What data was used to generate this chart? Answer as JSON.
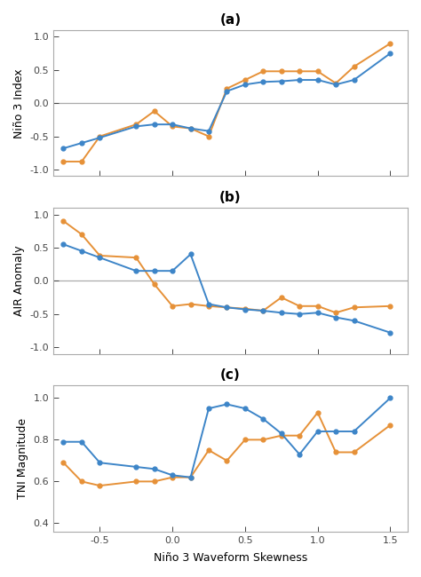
{
  "x": [
    -0.75,
    -0.625,
    -0.5,
    -0.25,
    -0.125,
    0.0,
    0.125,
    0.25,
    0.375,
    0.5,
    0.625,
    0.75,
    0.875,
    1.0,
    1.125,
    1.25,
    1.5
  ],
  "panel_a": {
    "blue": [
      -0.68,
      -0.6,
      -0.52,
      -0.35,
      -0.32,
      -0.32,
      -0.38,
      -0.42,
      0.18,
      0.28,
      0.32,
      0.33,
      0.35,
      0.35,
      0.28,
      0.35,
      0.75
    ],
    "orange": [
      -0.88,
      -0.88,
      -0.5,
      -0.32,
      -0.12,
      -0.35,
      -0.38,
      -0.5,
      0.22,
      0.35,
      0.48,
      0.48,
      0.48,
      0.48,
      0.3,
      0.55,
      0.9
    ],
    "ylabel": "Niño 3 Index",
    "title": "(a)",
    "ylim": [
      -1.1,
      1.1
    ],
    "yticks": [
      -1.0,
      -0.5,
      0.0,
      0.5,
      1.0
    ],
    "hline": 0.0
  },
  "panel_b": {
    "blue": [
      0.55,
      0.45,
      0.35,
      0.15,
      0.15,
      0.15,
      0.4,
      -0.35,
      -0.4,
      -0.43,
      -0.45,
      -0.48,
      -0.5,
      -0.48,
      -0.55,
      -0.6,
      -0.78
    ],
    "orange": [
      0.9,
      0.7,
      0.38,
      0.35,
      -0.05,
      -0.38,
      -0.35,
      -0.38,
      -0.4,
      -0.42,
      -0.45,
      -0.25,
      -0.38,
      -0.38,
      -0.48,
      -0.4,
      -0.38
    ],
    "ylabel": "AIR Anomaly",
    "title": "(b)",
    "ylim": [
      -1.1,
      1.1
    ],
    "yticks": [
      -1.0,
      -0.5,
      0.0,
      0.5,
      1.0
    ],
    "hline": 0.0
  },
  "panel_c": {
    "blue": [
      0.79,
      0.79,
      0.69,
      0.67,
      0.66,
      0.63,
      0.62,
      0.95,
      0.97,
      0.95,
      0.9,
      0.83,
      0.73,
      0.84,
      0.84,
      0.84,
      1.0
    ],
    "orange": [
      0.69,
      0.6,
      0.58,
      0.6,
      0.6,
      0.62,
      0.62,
      0.75,
      0.7,
      0.8,
      0.8,
      0.82,
      0.82,
      0.93,
      0.74,
      0.74,
      0.87
    ],
    "ylabel": "TNI Magnitude",
    "title": "(c)",
    "ylim": [
      0.36,
      1.06
    ],
    "yticks": [
      0.4,
      0.6,
      0.8,
      1.0
    ],
    "hline": null
  },
  "xlabel": "Niño 3 Waveform Skewness",
  "xlim": [
    -0.82,
    1.62
  ],
  "xticks": [
    -0.5,
    0.0,
    0.5,
    1.0,
    1.5
  ],
  "blue_color": "#3d85c8",
  "orange_color": "#e69138",
  "hline_color": "#aaaaaa",
  "bg_color": "#ffffff",
  "spine_color": "#aaaaaa",
  "marker": "o",
  "markersize": 3.5,
  "linewidth": 1.4,
  "title_fontsize": 11,
  "label_fontsize": 9,
  "tick_fontsize": 8
}
